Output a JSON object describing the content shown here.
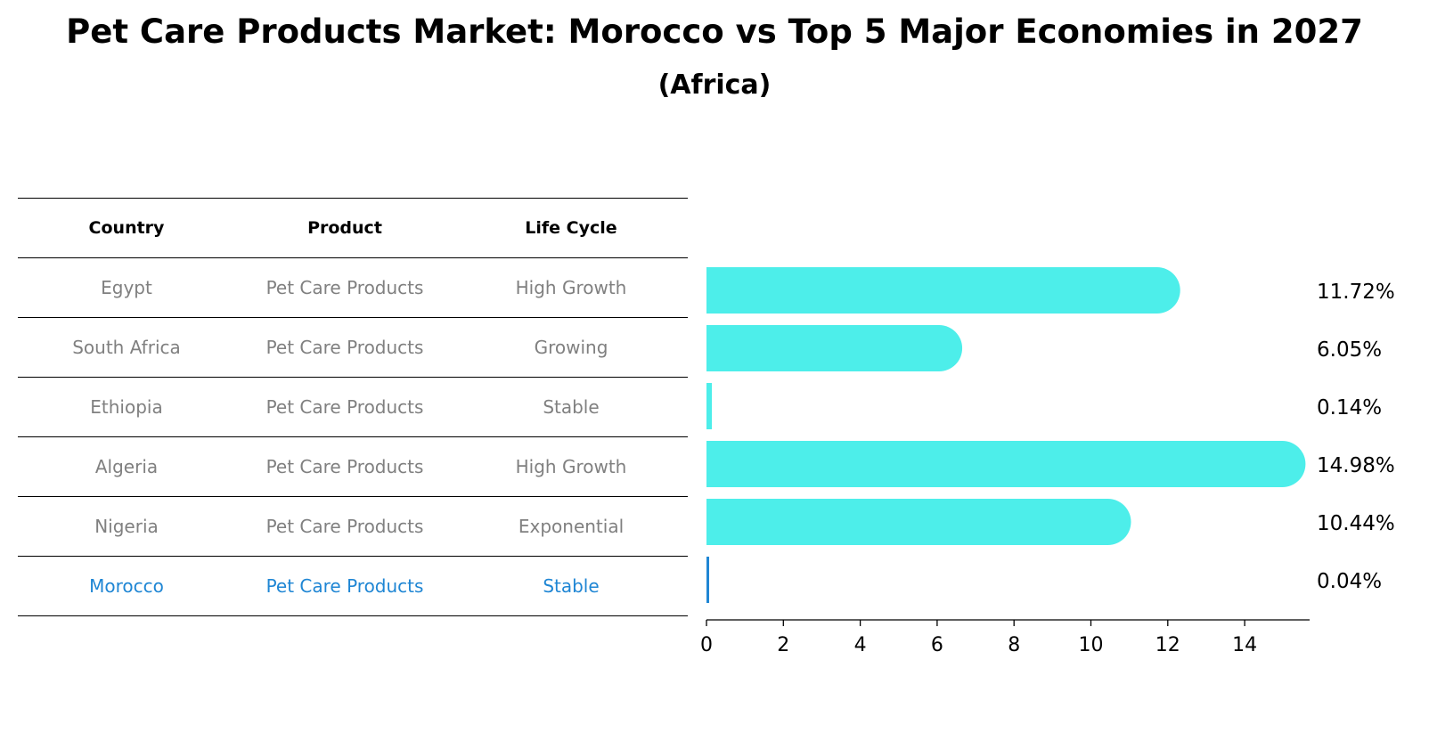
{
  "title": "Pet Care Products Market: Morocco vs Top 5 Major Economies in 2027",
  "subtitle": "(Africa)",
  "table": {
    "headers": [
      "Country",
      "Product",
      "Life Cycle"
    ],
    "rows": [
      {
        "country": "Egypt",
        "product": "Pet Care Products",
        "life_cycle": "High Growth"
      },
      {
        "country": "South Africa",
        "product": "Pet Care Products",
        "life_cycle": "Growing"
      },
      {
        "country": "Ethiopia",
        "product": "Pet Care Products",
        "life_cycle": "Stable"
      },
      {
        "country": "Algeria",
        "product": "Pet Care Products",
        "life_cycle": "High Growth"
      },
      {
        "country": "Nigeria",
        "product": "Pet Care Products",
        "life_cycle": "Exponential"
      },
      {
        "country": "Morocco",
        "product": "Pet Care Products",
        "life_cycle": "Stable"
      }
    ],
    "highlight_color": "#1f86d4",
    "text_color": "#808080"
  },
  "chart_data": {
    "type": "bar",
    "orientation": "horizontal",
    "categories": [
      "Egypt",
      "South Africa",
      "Ethiopia",
      "Algeria",
      "Nigeria",
      "Morocco"
    ],
    "values": [
      11.72,
      6.05,
      0.14,
      14.98,
      10.44,
      0.04
    ],
    "value_labels": [
      "11.72%",
      "6.05%",
      "0.14%",
      "14.98%",
      "10.44%",
      "0.04%"
    ],
    "xticks": [
      "0",
      "2",
      "4",
      "6",
      "8",
      "10",
      "12",
      "14"
    ],
    "xlim": [
      0,
      15.7
    ],
    "bar_color": "#4deeea",
    "highlight_bar_color": "#1f86d4",
    "highlight_category": "Morocco",
    "grid": false
  }
}
